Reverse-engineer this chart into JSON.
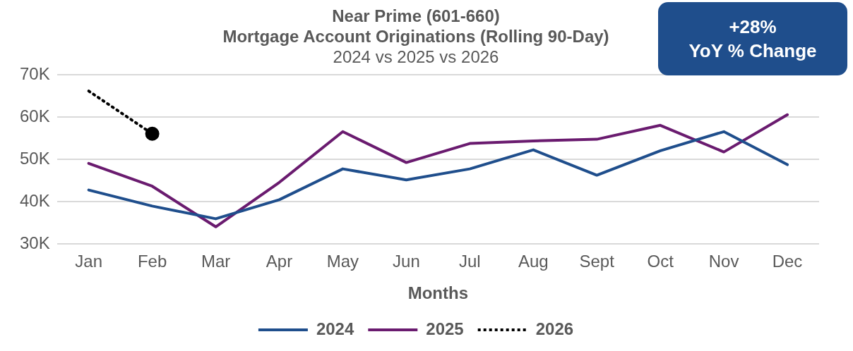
{
  "chart_data": {
    "type": "line",
    "title": "Near Prime (601-660)\nMortgage Account Originations (Rolling 90-Day)",
    "subtitle": "2024 vs 2025 vs 2026",
    "xlabel": "Months",
    "categories": [
      "Jan",
      "Feb",
      "Mar",
      "Apr",
      "May",
      "Jun",
      "Jul",
      "Aug",
      "Sept",
      "Oct",
      "Nov",
      "Dec"
    ],
    "series": [
      {
        "name": "2024",
        "color": "#1f4e8c",
        "values": [
          42800,
          39000,
          36000,
          40500,
          47800,
          45200,
          47800,
          52300,
          46300,
          52100,
          56600,
          48800
        ],
        "line_style": "solid",
        "marker": "none"
      },
      {
        "name": "2025",
        "color": "#6a1b6f",
        "values": [
          49100,
          43700,
          34100,
          44600,
          56600,
          49300,
          53800,
          54400,
          54800,
          58100,
          51800,
          60600
        ],
        "line_style": "solid",
        "marker": "none"
      },
      {
        "name": "2026",
        "color": "#000000",
        "values": [
          66200,
          56100,
          null,
          null,
          null,
          null,
          null,
          null,
          null,
          null,
          null,
          null
        ],
        "line_style": "dotted",
        "marker": "circle"
      }
    ],
    "ylim": [
      30000,
      70000
    ],
    "yticks": [
      {
        "value": 30000,
        "label": "30K"
      },
      {
        "value": 40000,
        "label": "40K"
      },
      {
        "value": 50000,
        "label": "50K"
      },
      {
        "value": 60000,
        "label": "60K"
      },
      {
        "value": 70000,
        "label": "70K"
      }
    ],
    "grid": "y",
    "legend": "bottom",
    "annotations": [
      "+28%",
      "YoY % Change"
    ]
  }
}
